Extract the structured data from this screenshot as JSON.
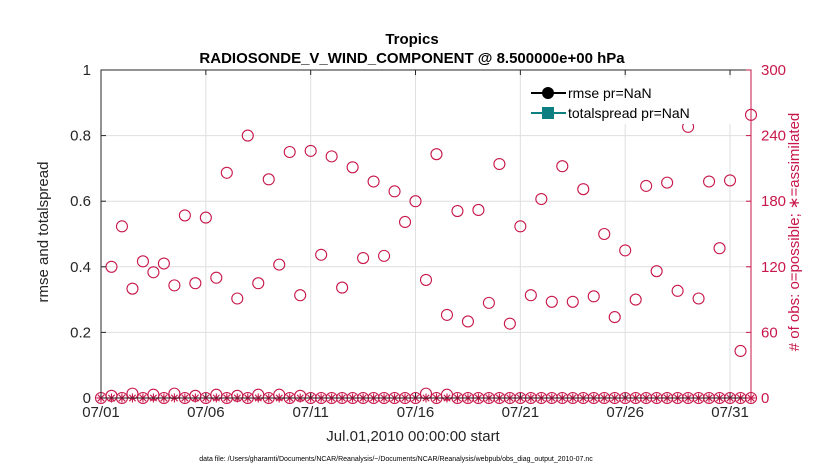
{
  "chart_data": {
    "type": "scatter",
    "title_line1": "Tropics",
    "title_line2": "RADIOSONDE_V_WIND_COMPONENT @ 8.500000e+00 hPa",
    "xlabel": "Jul.01,2010 00:00:00 start",
    "ylabel_left": "rmse and totalspread",
    "ylabel_right": "# of obs: o=possible; ∗=assimilated",
    "footnote": "data file: /Users/gharamti/Documents/NCAR/Reanalysis/~/Documents/NCAR/Reanalysis/webpub/obs_diag_output_2010-07.nc",
    "x_range": [
      1,
      32
    ],
    "x_ticks": [
      1,
      6,
      11,
      16,
      21,
      26,
      31
    ],
    "x_tick_labels": [
      "07/01",
      "07/06",
      "07/11",
      "07/16",
      "07/21",
      "07/26",
      "07/31"
    ],
    "y_left_range": [
      0,
      1
    ],
    "y_left_ticks": [
      "0",
      "0.2",
      "0.4",
      "0.6",
      "0.8",
      "1"
    ],
    "y_right_range": [
      0,
      300
    ],
    "y_right_ticks": [
      "0",
      "60",
      "120",
      "180",
      "240",
      "300"
    ],
    "grid": true,
    "legend_position": "top-right",
    "legend": [
      "rmse pr=NaN",
      "totalspread pr=NaN"
    ],
    "series": [
      {
        "name": "rmse pr=NaN",
        "color": "#000000",
        "x": [],
        "values": []
      },
      {
        "name": "totalspread pr=NaN",
        "color": "#0e7f80",
        "x": [],
        "values": []
      },
      {
        "name": "possible (upper level)",
        "marker": "circle",
        "color": "#c8174a",
        "x": [
          1.5,
          2.0,
          2.5,
          3.0,
          3.5,
          4.0,
          4.5,
          5.0,
          5.5,
          6.0,
          6.5,
          7.0,
          7.5,
          8.0,
          8.5,
          9.0,
          9.5,
          10.0,
          10.5,
          11.0,
          11.5,
          12.0,
          12.5,
          13.0,
          13.5,
          14.0,
          14.5,
          15.0,
          15.5,
          16.0,
          16.5,
          17.0,
          17.5,
          18.0,
          18.5,
          19.0,
          19.5,
          20.0,
          20.5,
          21.0,
          21.5,
          22.0,
          22.5,
          23.0,
          23.5,
          24.0,
          24.5,
          25.0,
          25.5,
          26.0,
          26.5,
          27.0,
          27.5,
          28.0,
          28.5,
          29.0,
          29.5,
          30.0,
          30.5,
          31.0,
          31.5,
          32.0
        ],
        "values": [
          120,
          157,
          100,
          125,
          115,
          123,
          103,
          167,
          105,
          165,
          110,
          206,
          91,
          240,
          105,
          200,
          122,
          225,
          94,
          226,
          131,
          221,
          101,
          211,
          128,
          198,
          130,
          189,
          161,
          180,
          108,
          223,
          76,
          171,
          70,
          172,
          87,
          214,
          68,
          157,
          94,
          182,
          88,
          212,
          88,
          191,
          93,
          150,
          74,
          135,
          90,
          194,
          116,
          197,
          98,
          248,
          91,
          198,
          137,
          199,
          43,
          259
        ]
      },
      {
        "name": "possible (near zero)",
        "marker": "circle",
        "color": "#c8174a",
        "x": [
          1.0,
          1.5,
          2.0,
          2.5,
          3.0,
          3.5,
          4.0,
          4.5,
          5.0,
          5.5,
          6.0,
          6.5,
          7.0,
          7.5,
          8.0,
          8.5,
          9.0,
          9.5,
          10.0,
          10.5,
          11.0,
          11.5,
          12.0,
          12.5,
          13.0,
          13.5,
          14.0,
          14.5,
          15.0,
          15.5,
          16.0,
          16.5,
          17.0,
          17.5,
          18.0,
          18.5,
          19.0,
          19.5,
          20.0,
          20.5,
          21.0,
          21.5,
          22.0,
          22.5,
          23.0,
          23.5,
          24.0,
          24.5,
          25.0,
          25.5,
          26.0,
          26.5,
          27.0,
          27.5,
          28.0,
          28.5,
          29.0,
          29.5,
          30.0,
          30.5,
          31.0,
          31.5,
          32.0
        ],
        "values": [
          0,
          2,
          0,
          4,
          0,
          3,
          0,
          4,
          0,
          2,
          0,
          3,
          0,
          2,
          0,
          3,
          0,
          3,
          0,
          2,
          0,
          0,
          0,
          0,
          0,
          0,
          0,
          0,
          0,
          0,
          0,
          4,
          0,
          3,
          0,
          0,
          0,
          0,
          0,
          0,
          0,
          0,
          0,
          0,
          0,
          0,
          0,
          0,
          0,
          0,
          0,
          0,
          0,
          0,
          0,
          0,
          0,
          0,
          0,
          0,
          0,
          0,
          0
        ]
      },
      {
        "name": "assimilated",
        "marker": "asterisk",
        "color": "#c8174a",
        "x": [
          1.0,
          1.5,
          2.0,
          2.5,
          3.0,
          3.5,
          4.0,
          4.5,
          5.0,
          5.5,
          6.0,
          6.5,
          7.0,
          7.5,
          8.0,
          8.5,
          9.0,
          9.5,
          10.0,
          10.5,
          11.0,
          11.5,
          12.0,
          12.5,
          13.0,
          13.5,
          14.0,
          14.5,
          15.0,
          15.5,
          16.0,
          16.5,
          17.0,
          17.5,
          18.0,
          18.5,
          19.0,
          19.5,
          20.0,
          20.5,
          21.0,
          21.5,
          22.0,
          22.5,
          23.0,
          23.5,
          24.0,
          24.5,
          25.0,
          25.5,
          26.0,
          26.5,
          27.0,
          27.5,
          28.0,
          28.5,
          29.0,
          29.5,
          30.0,
          30.5,
          31.0,
          31.5,
          32.0
        ],
        "values": [
          0,
          0,
          0,
          0,
          0,
          0,
          0,
          0,
          0,
          0,
          0,
          0,
          0,
          0,
          0,
          0,
          0,
          0,
          0,
          0,
          0,
          0,
          0,
          0,
          0,
          0,
          0,
          0,
          0,
          0,
          0,
          0,
          0,
          0,
          0,
          0,
          0,
          0,
          0,
          0,
          0,
          0,
          0,
          0,
          0,
          0,
          0,
          0,
          0,
          0,
          0,
          0,
          0,
          0,
          0,
          0,
          0,
          0,
          0,
          0,
          0,
          0,
          0
        ]
      }
    ],
    "colors": {
      "axis": "#262626",
      "grid": "#dfdfdf",
      "right_axis": "#c8174a",
      "rmse": "#000000",
      "totalspread": "#0e7f80"
    }
  }
}
